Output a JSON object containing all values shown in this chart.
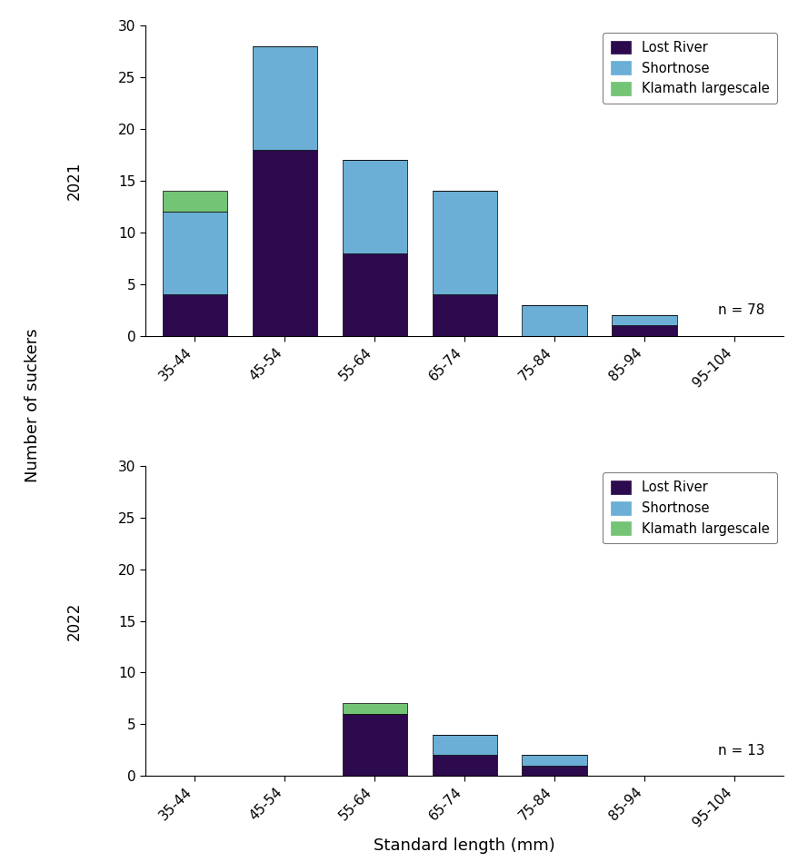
{
  "categories": [
    "35-44",
    "45-54",
    "55-64",
    "65-74",
    "75-84",
    "85-94",
    "95-104"
  ],
  "year2021": {
    "lost_river": [
      4,
      18,
      8,
      4,
      0,
      1,
      0
    ],
    "shortnose": [
      8,
      10,
      9,
      10,
      3,
      1,
      0
    ],
    "klamath_largescale": [
      2,
      0,
      0,
      0,
      0,
      0,
      0
    ]
  },
  "year2022": {
    "lost_river": [
      0,
      0,
      6,
      2,
      1,
      0,
      0
    ],
    "shortnose": [
      0,
      0,
      0,
      2,
      1,
      0,
      0
    ],
    "klamath_largescale": [
      0,
      0,
      1,
      0,
      0,
      0,
      0
    ]
  },
  "colors": {
    "lost_river": "#2d0a4e",
    "shortnose": "#6baed6",
    "klamath_largescale": "#74c476"
  },
  "legend_labels": [
    "Lost River",
    "Shortnose",
    "Klamath largescale"
  ],
  "ylabel": "Number of suckers",
  "xlabel": "Standard length (mm)",
  "ylim": [
    0,
    30
  ],
  "yticks": [
    0,
    5,
    10,
    15,
    20,
    25,
    30
  ],
  "n2021": "n = 78",
  "n2022": "n = 13",
  "year_label_2021": "2021",
  "year_label_2022": "2022"
}
